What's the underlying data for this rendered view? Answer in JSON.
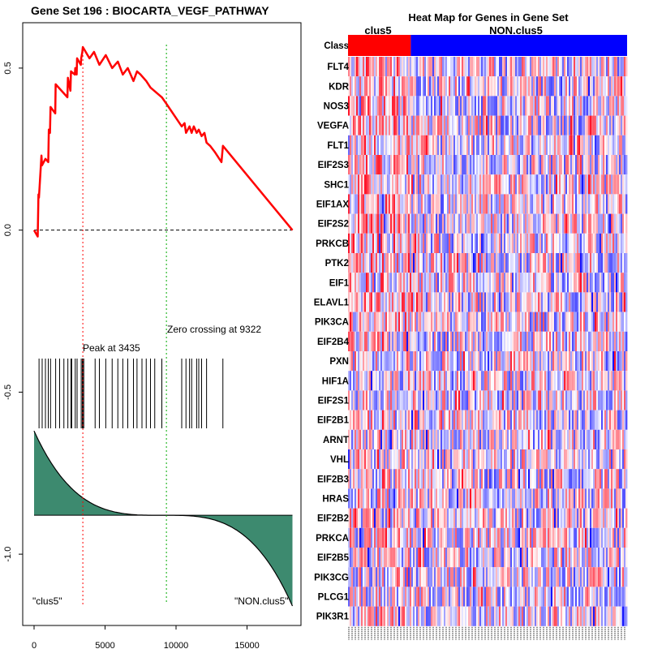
{
  "left_panel": {
    "title": "Gene Set  196 : BIOCARTA_VEGF_PATHWAY",
    "peak_label": "Peak at 3435",
    "zero_crossing_label": "Zero crossing at 9322",
    "left_class_label": "\"clus5\"",
    "right_class_label": "\"NON.clus5\""
  },
  "heatmap": {
    "title": "Heat Map for Genes in Gene Set",
    "class_label": "Class",
    "group1": "clus5",
    "group2": "NON.clus5"
  },
  "colors": {
    "es_curve": "#ff0000",
    "peak_line": "#ff0000",
    "zero_line": "#00aa00",
    "ranked_fill": "#3d8a6f",
    "class_group1": "#ff0000",
    "class_group2": "#0000ff",
    "heat_high": "#e8000f",
    "heat_low": "#0000ff"
  },
  "chart_data": [
    {
      "type": "line",
      "title": "Gene Set  196 : BIOCARTA_VEGF_PATHWAY",
      "xlabel": "",
      "ylabel": "",
      "xlim": [
        -800,
        18800
      ],
      "ylim": [
        -1.22,
        0.64
      ],
      "x_ticks": [
        0,
        5000,
        10000,
        15000
      ],
      "y_ticks": [
        -1.0,
        -0.5,
        0.0,
        0.5
      ],
      "grid": false,
      "total_genes": 18200,
      "peak_position": 3435,
      "zero_crossing": 9322,
      "running_enrichment_score": {
        "name": "running ES",
        "x": [
          0,
          260,
          310,
          340,
          520,
          560,
          800,
          1000,
          1040,
          1120,
          1160,
          1490,
          1520,
          2350,
          2380,
          2560,
          2600,
          2870,
          2900,
          3000,
          3030,
          3290,
          3320,
          3400,
          3435,
          3900,
          4220,
          4600,
          5050,
          5500,
          5900,
          6250,
          6600,
          7000,
          7250,
          7500,
          7900,
          8200,
          9000,
          9322,
          10400,
          10600,
          10700,
          10950,
          11100,
          11250,
          11450,
          11600,
          11800,
          12000,
          12150,
          12400,
          12750,
          13200,
          13300,
          18200
        ],
        "values": [
          0.0,
          -0.02,
          0.11,
          0.1,
          0.23,
          0.2,
          0.22,
          0.21,
          0.31,
          0.3,
          0.38,
          0.36,
          0.45,
          0.41,
          0.47,
          0.43,
          0.49,
          0.48,
          0.5,
          0.48,
          0.53,
          0.51,
          0.53,
          0.55,
          0.565,
          0.53,
          0.55,
          0.51,
          0.54,
          0.5,
          0.52,
          0.48,
          0.5,
          0.46,
          0.49,
          0.48,
          0.46,
          0.44,
          0.41,
          0.39,
          0.32,
          0.33,
          0.3,
          0.32,
          0.3,
          0.32,
          0.3,
          0.31,
          0.29,
          0.3,
          0.27,
          0.26,
          0.24,
          0.21,
          0.26,
          0.0
        ]
      },
      "hit_positions": [
        350,
        570,
        800,
        1000,
        1160,
        1520,
        1800,
        2100,
        2380,
        2600,
        2650,
        2900,
        3030,
        3320,
        3400,
        3435,
        3500,
        4300,
        4600,
        5050,
        5500,
        5900,
        6250,
        6600,
        7000,
        7250,
        7600,
        7900,
        8200,
        8500,
        9000,
        10400,
        10700,
        10950,
        11100,
        11450,
        11600,
        11800,
        12150,
        13300
      ],
      "ranked_metric": {
        "name": "ranked list metric",
        "baseline": -0.88,
        "top": -0.62,
        "bottom": -1.16
      }
    },
    {
      "type": "heatmap",
      "title": "Heat Map for Genes in Gene Set",
      "genes": [
        "FLT4",
        "KDR",
        "NOS3",
        "VEGFA",
        "FLT1",
        "EIF2S3",
        "SHC1",
        "EIF1AX",
        "EIF2S2",
        "PRKCB",
        "PTK2",
        "EIF1",
        "ELAVL1",
        "PIK3CA",
        "EIF2B4",
        "PXN",
        "HIF1A",
        "EIF2S1",
        "EIF2B1",
        "ARNT",
        "VHL",
        "EIF2B3",
        "HRAS",
        "EIF2B2",
        "PRKCA",
        "EIF2B5",
        "PIK3CG",
        "PLCG1",
        "PIK3R1"
      ],
      "class_groups": [
        {
          "name": "clus5",
          "fraction": 0.225
        },
        {
          "name": "NON.clus5",
          "fraction": 0.775
        }
      ],
      "color_scale": [
        "#0000ff",
        "#ffffff",
        "#e8000f"
      ]
    }
  ]
}
